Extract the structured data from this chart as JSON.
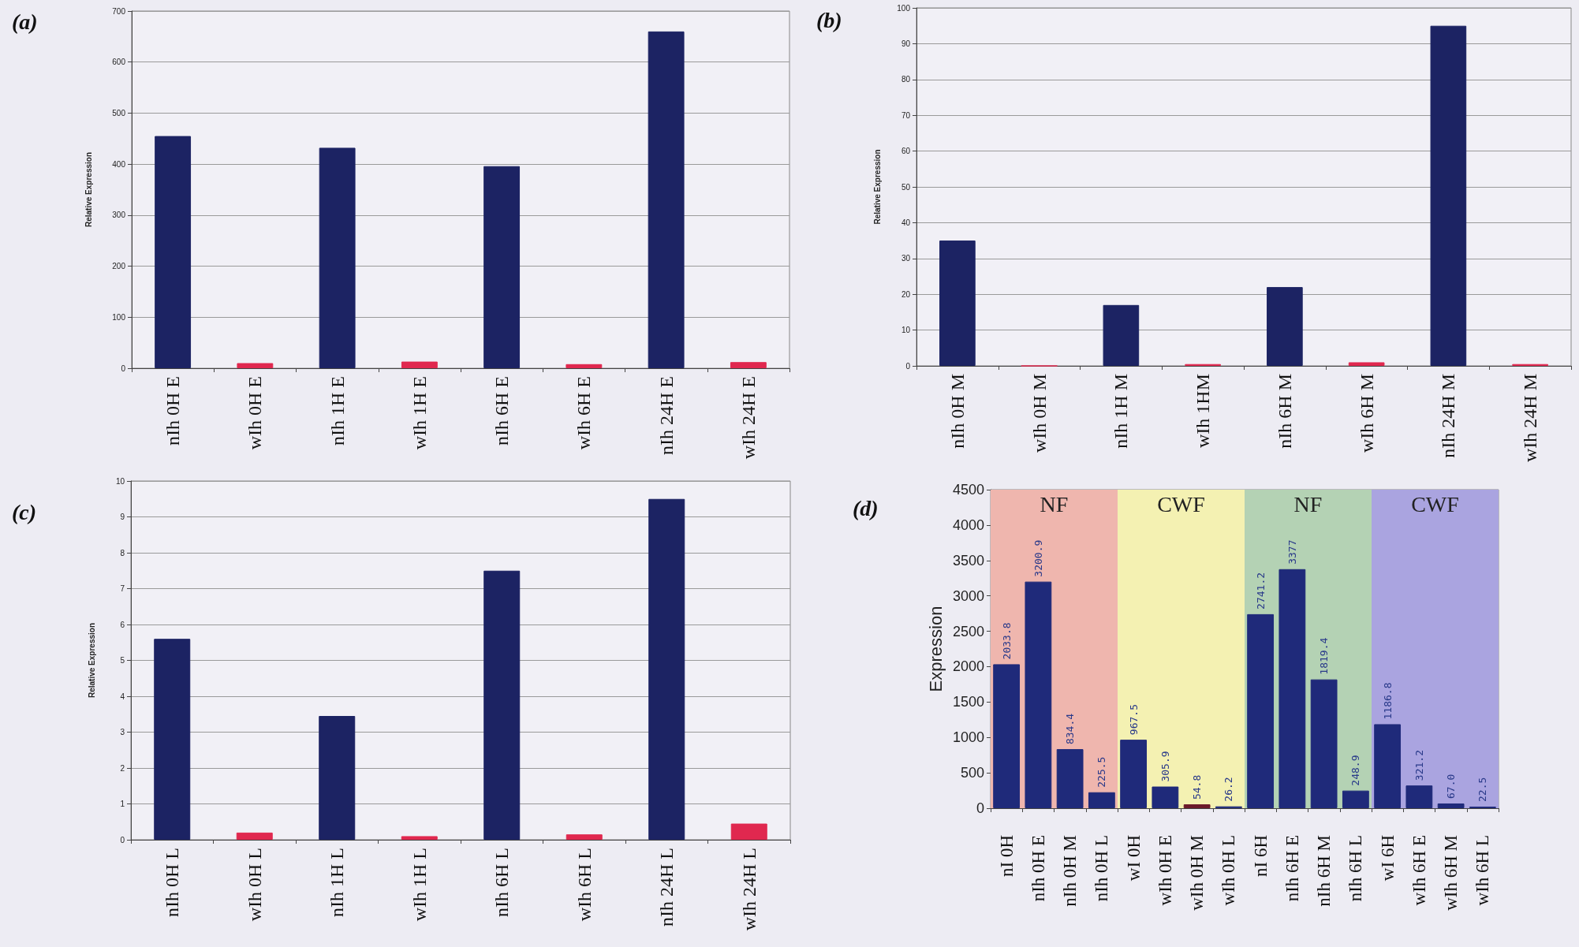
{
  "chart_data": [
    {
      "type": "bar",
      "title": "(a)",
      "ylabel": "Relative Expression",
      "categories": [
        "nIh 0H E",
        "wIh 0H E",
        "nIh 1H E",
        "wIh 1H E",
        "nIh 6H E",
        "wIh 6H E",
        "nIh 24H E",
        "wIh 24H E"
      ],
      "values": [
        455,
        10,
        432,
        13,
        396,
        8,
        660,
        12
      ],
      "colors": [
        "#1c2363",
        "#e0284f",
        "#1c2363",
        "#e0284f",
        "#1c2363",
        "#e0284f",
        "#1c2363",
        "#e0284f"
      ],
      "ylim": [
        0,
        700
      ],
      "yticks": [
        0,
        100,
        200,
        300,
        400,
        500,
        600,
        700
      ],
      "grid": "y"
    },
    {
      "type": "bar",
      "title": "(b)",
      "ylabel": "Relative Expression",
      "categories": [
        "nIh 0H M",
        "wIh 0H M",
        "nIh 1H M",
        "wIh 1HM",
        "nIh 6H M",
        "wIh 6H M",
        "nIh 24H M",
        "wIh 24H M"
      ],
      "values": [
        35,
        0,
        17,
        0.5,
        22,
        1,
        95,
        0.5
      ],
      "colors": [
        "#1c2363",
        "#e0284f",
        "#1c2363",
        "#e0284f",
        "#1c2363",
        "#e0284f",
        "#1c2363",
        "#e0284f"
      ],
      "ylim": [
        0,
        100
      ],
      "yticks": [
        0,
        10,
        20,
        30,
        40,
        50,
        60,
        70,
        80,
        90,
        100
      ],
      "grid": "y"
    },
    {
      "type": "bar",
      "title": "(c)",
      "ylabel": "Relative Expression",
      "categories": [
        "nIh 0H L",
        "wIh 0H L",
        "nIh 1H L",
        "wIh 1H L",
        "nIh 6H L",
        "wIh 6H L",
        "nIh 24H L",
        "wIh 24H L"
      ],
      "values": [
        5.6,
        0.2,
        3.45,
        0.1,
        7.5,
        0.15,
        9.5,
        0.45
      ],
      "colors": [
        "#1c2363",
        "#e0284f",
        "#1c2363",
        "#e0284f",
        "#1c2363",
        "#e0284f",
        "#1c2363",
        "#e0284f"
      ],
      "ylim": [
        0,
        10
      ],
      "yticks": [
        0,
        1,
        2,
        3,
        4,
        5,
        6,
        7,
        8,
        9,
        10
      ],
      "grid": "y"
    },
    {
      "type": "bar",
      "title": "(d)",
      "ylabel": "Expression",
      "categories": [
        "nI 0H",
        "nIh 0H E",
        "nIh 0H M",
        "nIh 0H L",
        "wI 0H",
        "wIh 0H E",
        "wIh 0H M",
        "wIh 0H L",
        "nI 6H",
        "nIh 6H E",
        "nIh 6H M",
        "nIh 6H L",
        "wI 6H",
        "wIh 6H E",
        "wIh 6H M",
        "wIh 6H L"
      ],
      "values": [
        2033.8,
        3200.9,
        834.4,
        225.5,
        967.5,
        305.9,
        54.8,
        26.2,
        2741.2,
        3377,
        1819.4,
        248.9,
        1186.8,
        321.2,
        67.0,
        22.5
      ],
      "value_labels": [
        "2033.8",
        "3200.9",
        "834.4",
        "225.5",
        "967.5",
        "305.9",
        "54.8",
        "26.2",
        "2741.2",
        "3377",
        "1819.4",
        "248.9",
        "1186.8",
        "321.2",
        "67.0",
        "22.5"
      ],
      "colors": [
        "#1f2a7a",
        "#1f2a7a",
        "#1f2a7a",
        "#1f2a7a",
        "#1f2a7a",
        "#1f2a7a",
        "#6b1a2a",
        "#1f2a7a",
        "#1f2a7a",
        "#1f2a7a",
        "#1f2a7a",
        "#1f2a7a",
        "#1f2a7a",
        "#1f2a7a",
        "#1f2a7a",
        "#1f2a7a"
      ],
      "bands": [
        {
          "axis": "x",
          "from": "nI 0H",
          "to": "nIh 0H L",
          "label": "NF",
          "color": "#efb6ae"
        },
        {
          "axis": "x",
          "from": "wI 0H",
          "to": "wIh 0H L",
          "label": "CWF",
          "color": "#f4f1b2"
        },
        {
          "axis": "x",
          "from": "nI 6H",
          "to": "nIh 6H L",
          "label": "NF",
          "color": "#b4d2b4"
        },
        {
          "axis": "x",
          "from": "wI 6H",
          "to": "wIh 6H L",
          "label": "CWF",
          "color": "#aaa4e0"
        }
      ],
      "ylim": [
        0,
        4500
      ],
      "yticks": [
        0,
        500,
        1000,
        1500,
        2000,
        2500,
        3000,
        3500,
        4000,
        4500
      ],
      "grid": "y"
    }
  ]
}
